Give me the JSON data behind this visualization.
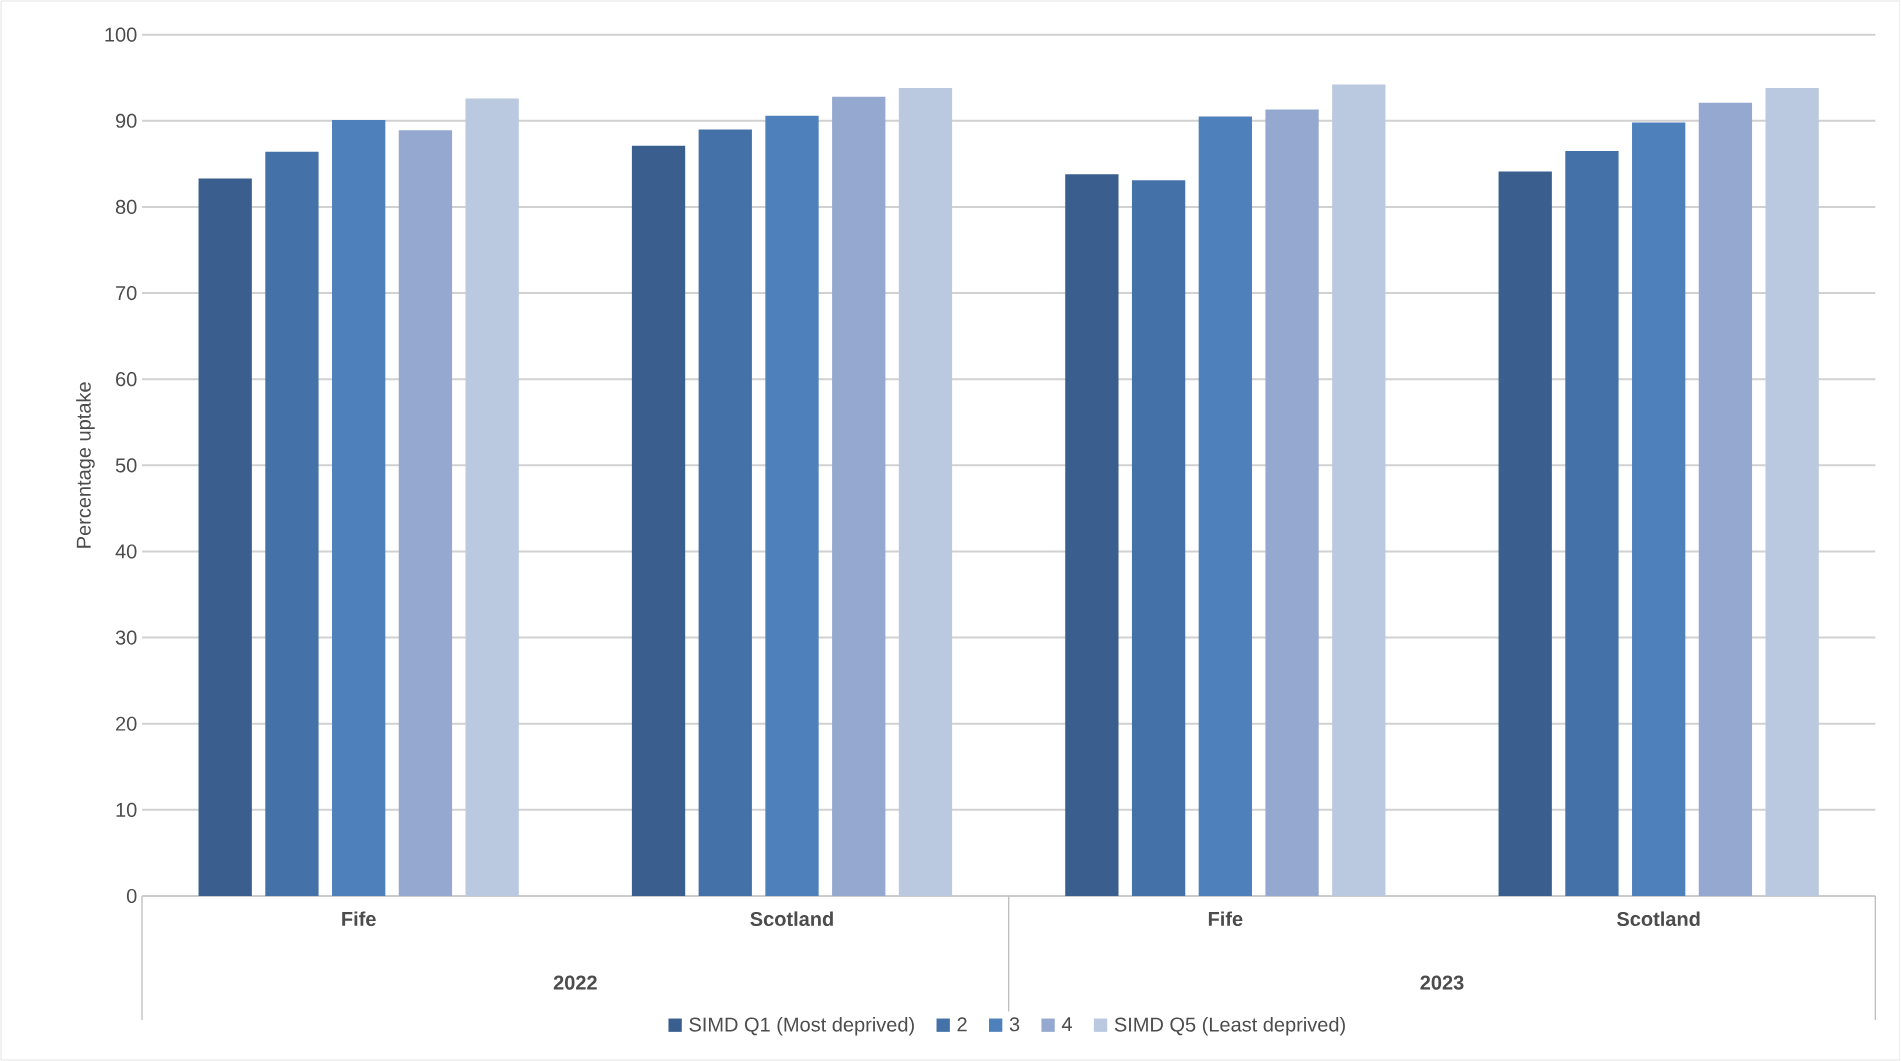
{
  "chart_data": {
    "type": "bar",
    "ylabel": "Percentage uptake",
    "categories": [
      "Fife",
      "Scotland",
      "Fife",
      "Scotland"
    ],
    "annotations": [
      "2022",
      "2023"
    ],
    "series": [
      {
        "name": "SIMD Q1 (Most deprived)",
        "color": "#3a5f8e",
        "values": [
          83.3,
          87.1,
          83.8,
          84.1
        ]
      },
      {
        "name": "2",
        "color": "#4472a8",
        "values": [
          86.4,
          89.0,
          83.1,
          86.5
        ]
      },
      {
        "name": "3",
        "color": "#4e80bb",
        "values": [
          90.1,
          90.6,
          90.5,
          89.8
        ]
      },
      {
        "name": "4",
        "color": "#95a9d0",
        "values": [
          88.9,
          92.8,
          91.3,
          92.1
        ]
      },
      {
        "name": "SIMD Q5 (Least deprived)",
        "color": "#bac8e0",
        "values": [
          92.6,
          93.8,
          94.2,
          93.8
        ]
      }
    ],
    "ylim": [
      0,
      100
    ],
    "yticks": [
      0,
      10,
      20,
      30,
      40,
      50,
      60,
      70,
      80,
      90,
      100
    ],
    "grid": "y",
    "legend": "bottom"
  }
}
